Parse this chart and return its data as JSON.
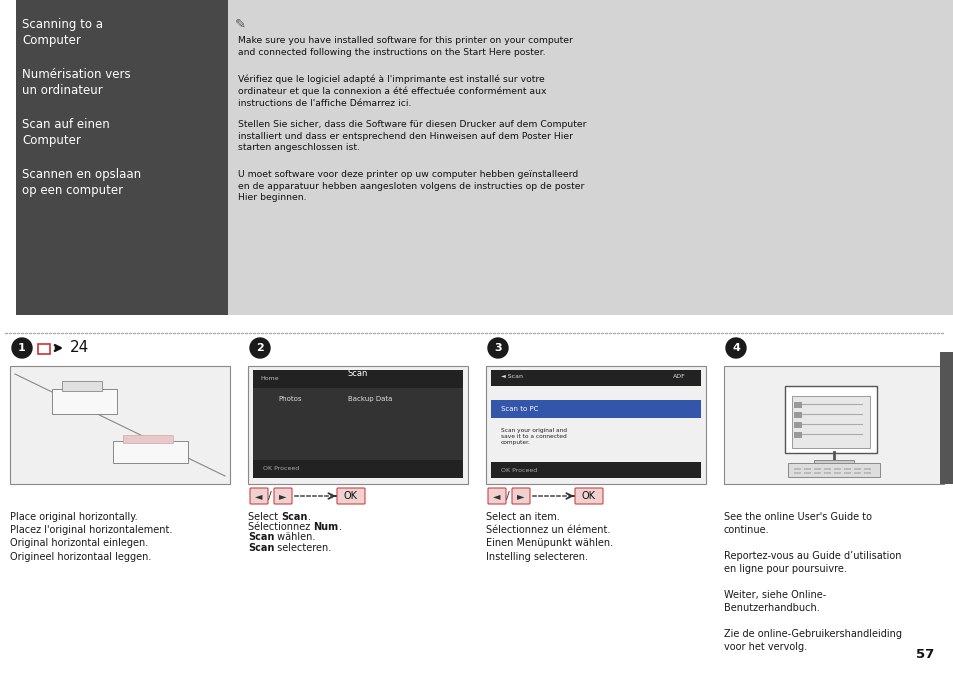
{
  "bg_color": "#ffffff",
  "top_left_bg": "#484848",
  "top_right_bg": "#d4d4d4",
  "left_texts": [
    "Scanning to a\nComputer",
    "Numérisation vers\nun ordinateur",
    "Scan auf einen\nComputer",
    "Scannen en opslaan\nop een computer"
  ],
  "para1": "Make sure you have installed software for this printer on your computer\nand connected following the instructions on the Start Here poster.",
  "para2": "Vérifiez que le logiciel adapté à l'imprimante est installé sur votre\nordinateur et que la connexion a été effectuée conformément aux\ninstructions de l'affiche Démarrez ici.",
  "para3": "Stellen Sie sicher, dass die Software für diesen Drucker auf dem Computer\ninstalliert und dass er entsprechend den Hinweisen auf dem Poster Hier\nstarten angeschlossen ist.",
  "para4": "U moet software voor deze printer op uw computer hebben geïnstalleerd\nen de apparatuur hebben aangesloten volgens de instructies op de poster\nHier beginnen.",
  "step1_caption": "Place original horizontally.\nPlacez l'original horizontalement.\nOriginal horizontal einlegen.\nOrigineel horizontaal leggen.",
  "step3_caption": "Select an item.\nSélectionnez un élément.\nEinen Menüpunkt wählen.\nInstelling selecteren.",
  "step4_caption": "See the online User's Guide to\ncontinue.\n\nReportez-vous au Guide d’utilisation\nen ligne pour poursuivre.\n\nWeiter, siehe Online-\nBenutzerhandbuch.\n\nZie de online-Gebruikershandleiding\nvoor het vervolg.",
  "page_number": "57",
  "dotted_line_color": "#aaaaaa",
  "step_circle_color": "#1a1a1a",
  "caption_color": "#1a1a1a",
  "right_tab_color": "#555555",
  "image_box_color": "#f0f0f0",
  "image_box_border": "#888888",
  "nav_arrow_color": "#cc3333",
  "ok_box_color": "#e8c8c8"
}
